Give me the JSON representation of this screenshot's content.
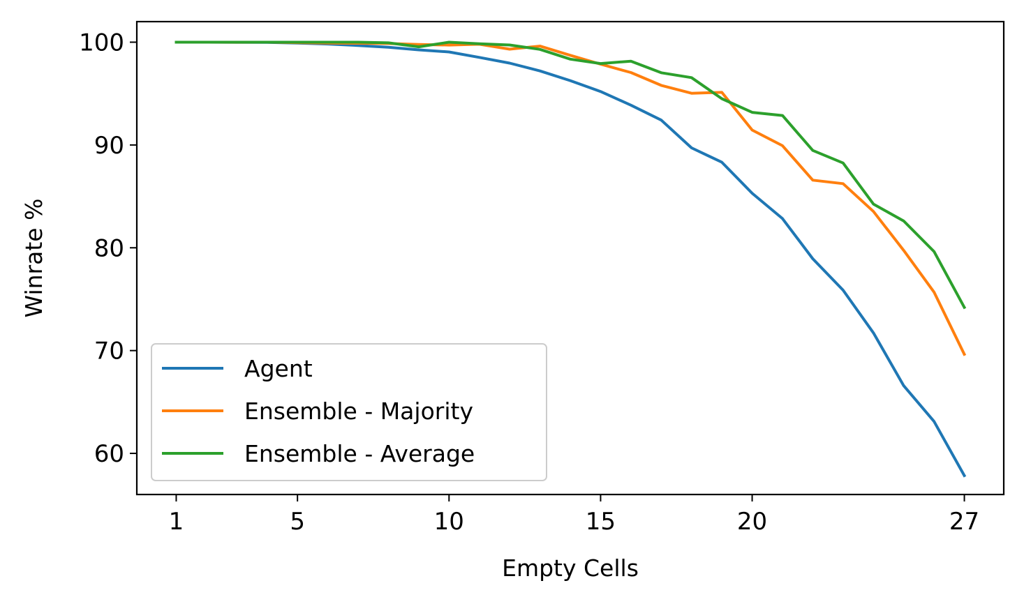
{
  "chart_data": {
    "type": "line",
    "title": "",
    "xlabel": "Empty Cells",
    "ylabel": "Winrate %",
    "xlim": [
      -0.3,
      28.3
    ],
    "ylim": [
      56,
      102
    ],
    "xticks": [
      1,
      5,
      10,
      15,
      20,
      27
    ],
    "xtick_labels": [
      "1",
      "5",
      "10",
      "15",
      "20",
      "27"
    ],
    "yticks": [
      60,
      70,
      80,
      90,
      100
    ],
    "ytick_labels": [
      "60",
      "70",
      "80",
      "90",
      "100"
    ],
    "grid": false,
    "legend": {
      "position": "lower-left"
    },
    "x": [
      1,
      2,
      3,
      4,
      5,
      6,
      7,
      8,
      9,
      10,
      11,
      12,
      13,
      14,
      15,
      16,
      17,
      18,
      19,
      20,
      21,
      22,
      23,
      24,
      25,
      26,
      27
    ],
    "series": [
      {
        "name": "Agent",
        "color": "#1f77b4",
        "values": [
          100.0,
          100.0,
          99.99,
          99.98,
          99.92,
          99.82,
          99.68,
          99.5,
          99.25,
          99.05,
          98.52,
          97.96,
          97.2,
          96.26,
          95.2,
          93.87,
          92.42,
          89.72,
          88.32,
          85.3,
          82.84,
          78.93,
          75.88,
          71.72,
          66.58,
          63.11,
          57.84
        ]
      },
      {
        "name": "Ensemble - Majority",
        "color": "#ff7f0e",
        "values": [
          100.0,
          100.0,
          99.99,
          100.0,
          99.96,
          99.92,
          99.9,
          99.87,
          99.78,
          99.72,
          99.8,
          99.32,
          99.62,
          98.72,
          97.86,
          97.05,
          95.8,
          95.03,
          95.12,
          91.45,
          89.93,
          86.58,
          86.24,
          83.53,
          79.74,
          75.69,
          69.64
        ]
      },
      {
        "name": "Ensemble - Average",
        "color": "#2ca02c",
        "values": [
          100.0,
          100.0,
          100.0,
          100.0,
          100.0,
          100.0,
          100.0,
          99.94,
          99.55,
          100.0,
          99.85,
          99.73,
          99.3,
          98.35,
          97.92,
          98.15,
          97.03,
          96.55,
          94.5,
          93.17,
          92.87,
          89.47,
          88.25,
          84.25,
          82.6,
          79.64,
          74.2
        ]
      }
    ]
  }
}
